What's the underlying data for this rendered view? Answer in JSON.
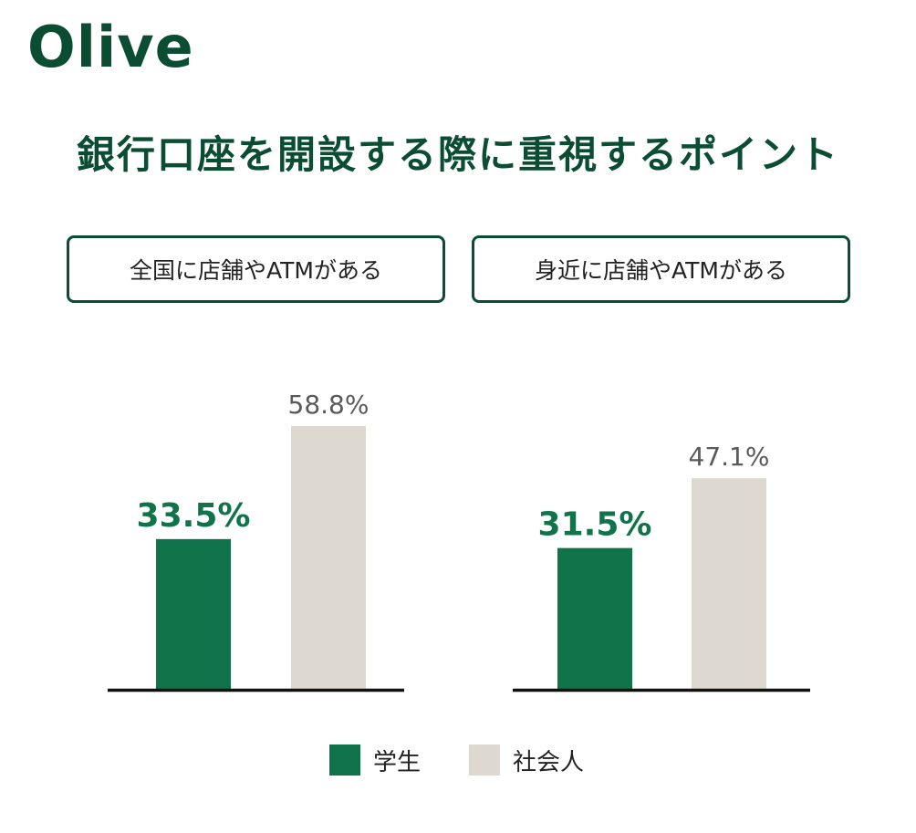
{
  "brand": {
    "logo_text": "Olive"
  },
  "colors": {
    "brand": "#0b4d32",
    "series_student": "#117349",
    "series_worker": "#ddd8d0",
    "value_label_worker": "#595959",
    "axis": "#111111",
    "text": "#222222",
    "panel_border": "#0b4d32"
  },
  "chart_data": {
    "type": "bar",
    "title": "銀行口座を開設する際に重視するポイント",
    "unit": "%",
    "legend_position": "bottom",
    "grid": false,
    "ylim": [
      0,
      70
    ],
    "categories": [
      "全国に店舗やATMがある",
      "身近に店舗やATMがある"
    ],
    "series": [
      {
        "name": "学生",
        "values": [
          33.5,
          31.5
        ],
        "value_labels": [
          "33.5%",
          "31.5%"
        ]
      },
      {
        "name": "社会人",
        "values": [
          58.8,
          47.1
        ],
        "value_labels": [
          "58.8%",
          "47.1%"
        ]
      }
    ]
  }
}
